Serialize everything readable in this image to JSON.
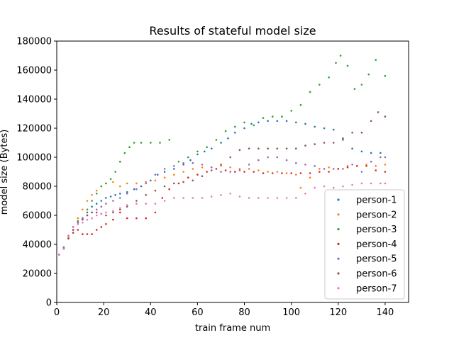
{
  "chart_data": {
    "type": "scatter",
    "title": "Results of stateful model size",
    "xlabel": "train frame num",
    "ylabel": "model size (Bytes)",
    "xlim": [
      0,
      150
    ],
    "ylim": [
      0,
      180000
    ],
    "xticks": [
      0,
      20,
      40,
      60,
      80,
      100,
      120,
      140
    ],
    "yticks": [
      0,
      20000,
      40000,
      60000,
      80000,
      100000,
      120000,
      140000,
      160000,
      180000
    ],
    "grid": false,
    "legend_position": "lower-right",
    "series": [
      {
        "name": "person-1",
        "color": "#1f77b4",
        "points": [
          [
            1,
            33000
          ],
          [
            3,
            37000
          ],
          [
            5,
            44000
          ],
          [
            7,
            50000
          ],
          [
            9,
            55000
          ],
          [
            11,
            58000
          ],
          [
            13,
            62000
          ],
          [
            15,
            66000
          ],
          [
            17,
            68000
          ],
          [
            19,
            70000
          ],
          [
            21,
            72000
          ],
          [
            23,
            73000
          ],
          [
            25,
            74000
          ],
          [
            27,
            75000
          ],
          [
            30,
            76000
          ],
          [
            33,
            78000
          ],
          [
            36,
            80000
          ],
          [
            40,
            84000
          ],
          [
            43,
            88000
          ],
          [
            46,
            90000
          ],
          [
            50,
            92000
          ],
          [
            54,
            95000
          ],
          [
            57,
            98000
          ],
          [
            60,
            102000
          ],
          [
            63,
            104000
          ],
          [
            66,
            106000
          ],
          [
            70,
            110000
          ],
          [
            73,
            113000
          ],
          [
            76,
            117000
          ],
          [
            80,
            120000
          ],
          [
            83,
            123000
          ],
          [
            86,
            124000
          ],
          [
            90,
            125000
          ],
          [
            94,
            125000
          ],
          [
            98,
            125000
          ],
          [
            102,
            124000
          ],
          [
            106,
            123000
          ],
          [
            110,
            121000
          ],
          [
            114,
            120000
          ],
          [
            118,
            119000
          ],
          [
            122,
            112000
          ],
          [
            126,
            106000
          ],
          [
            130,
            104000
          ],
          [
            134,
            103000
          ],
          [
            138,
            103000
          ]
        ]
      },
      {
        "name": "person-2",
        "color": "#ff7f0e",
        "points": [
          [
            1,
            33000
          ],
          [
            3,
            37000
          ],
          [
            5,
            45000
          ],
          [
            7,
            52000
          ],
          [
            9,
            58000
          ],
          [
            11,
            64000
          ],
          [
            13,
            70000
          ],
          [
            15,
            74000
          ],
          [
            17,
            77000
          ],
          [
            19,
            80000
          ],
          [
            21,
            82000
          ],
          [
            24,
            83000
          ],
          [
            27,
            80000
          ],
          [
            30,
            82000
          ],
          [
            34,
            82000
          ],
          [
            38,
            83000
          ],
          [
            42,
            84000
          ],
          [
            46,
            86000
          ],
          [
            50,
            88000
          ],
          [
            54,
            90000
          ],
          [
            58,
            92000
          ],
          [
            62,
            93000
          ],
          [
            66,
            93000
          ],
          [
            70,
            94000
          ],
          [
            74,
            93000
          ],
          [
            78,
            92000
          ],
          [
            82,
            92000
          ],
          [
            86,
            91000
          ],
          [
            90,
            90000
          ],
          [
            94,
            90000
          ],
          [
            98,
            89000
          ],
          [
            102,
            88000
          ],
          [
            104,
            79000
          ],
          [
            108,
            86000
          ],
          [
            112,
            92000
          ],
          [
            116,
            93000
          ],
          [
            120,
            92000
          ],
          [
            124,
            94000
          ],
          [
            128,
            94000
          ],
          [
            132,
            95000
          ],
          [
            136,
            94000
          ],
          [
            140,
            95000
          ]
        ]
      },
      {
        "name": "person-3",
        "color": "#2ca02c",
        "points": [
          [
            1,
            33000
          ],
          [
            3,
            38000
          ],
          [
            5,
            46000
          ],
          [
            7,
            52000
          ],
          [
            9,
            56000
          ],
          [
            11,
            58000
          ],
          [
            13,
            64000
          ],
          [
            15,
            70000
          ],
          [
            17,
            75000
          ],
          [
            19,
            80000
          ],
          [
            21,
            82000
          ],
          [
            23,
            85000
          ],
          [
            25,
            90000
          ],
          [
            27,
            97000
          ],
          [
            29,
            103000
          ],
          [
            31,
            107000
          ],
          [
            33,
            110000
          ],
          [
            36,
            110000
          ],
          [
            40,
            110000
          ],
          [
            44,
            110000
          ],
          [
            48,
            112000
          ],
          [
            52,
            97000
          ],
          [
            56,
            100000
          ],
          [
            60,
            104000
          ],
          [
            64,
            107000
          ],
          [
            68,
            112000
          ],
          [
            72,
            118000
          ],
          [
            76,
            121000
          ],
          [
            80,
            124000
          ],
          [
            84,
            122000
          ],
          [
            88,
            127000
          ],
          [
            92,
            128000
          ],
          [
            96,
            128000
          ],
          [
            100,
            132000
          ],
          [
            104,
            136000
          ],
          [
            108,
            145000
          ],
          [
            112,
            150000
          ],
          [
            116,
            155000
          ],
          [
            119,
            165000
          ],
          [
            121,
            170000
          ],
          [
            124,
            163000
          ],
          [
            127,
            147000
          ],
          [
            130,
            150000
          ],
          [
            133,
            157000
          ],
          [
            136,
            167000
          ],
          [
            140,
            156000
          ]
        ]
      },
      {
        "name": "person-4",
        "color": "#d62728",
        "points": [
          [
            1,
            33000
          ],
          [
            3,
            37000
          ],
          [
            5,
            44000
          ],
          [
            7,
            48000
          ],
          [
            9,
            50000
          ],
          [
            11,
            47000
          ],
          [
            13,
            47000
          ],
          [
            15,
            47000
          ],
          [
            17,
            50000
          ],
          [
            19,
            52000
          ],
          [
            21,
            54000
          ],
          [
            24,
            57000
          ],
          [
            27,
            62000
          ],
          [
            30,
            58000
          ],
          [
            34,
            58000
          ],
          [
            38,
            58000
          ],
          [
            42,
            62000
          ],
          [
            45,
            72000
          ],
          [
            48,
            78000
          ],
          [
            52,
            82000
          ],
          [
            56,
            86000
          ],
          [
            60,
            88000
          ],
          [
            64,
            90000
          ],
          [
            68,
            92000
          ],
          [
            72,
            91000
          ],
          [
            76,
            90000
          ],
          [
            80,
            90000
          ],
          [
            84,
            90000
          ],
          [
            88,
            89000
          ],
          [
            92,
            89000
          ],
          [
            96,
            89000
          ],
          [
            100,
            89000
          ],
          [
            104,
            89000
          ],
          [
            108,
            89000
          ],
          [
            112,
            90000
          ],
          [
            116,
            90000
          ],
          [
            120,
            92000
          ],
          [
            124,
            93000
          ],
          [
            128,
            94000
          ],
          [
            132,
            94000
          ],
          [
            136,
            91000
          ],
          [
            140,
            90000
          ]
        ]
      },
      {
        "name": "person-5",
        "color": "#9467bd",
        "points": [
          [
            1,
            33000
          ],
          [
            3,
            38000
          ],
          [
            5,
            46000
          ],
          [
            7,
            52000
          ],
          [
            9,
            55000
          ],
          [
            11,
            58000
          ],
          [
            13,
            60000
          ],
          [
            15,
            62000
          ],
          [
            17,
            64000
          ],
          [
            19,
            66000
          ],
          [
            21,
            68000
          ],
          [
            24,
            70000
          ],
          [
            27,
            72000
          ],
          [
            30,
            75000
          ],
          [
            34,
            78000
          ],
          [
            38,
            82000
          ],
          [
            42,
            88000
          ],
          [
            46,
            92000
          ],
          [
            50,
            94000
          ],
          [
            54,
            96000
          ],
          [
            58,
            96000
          ],
          [
            62,
            95000
          ],
          [
            66,
            93000
          ],
          [
            70,
            90000
          ],
          [
            74,
            90000
          ],
          [
            78,
            91000
          ],
          [
            82,
            95000
          ],
          [
            86,
            98000
          ],
          [
            90,
            100000
          ],
          [
            94,
            100000
          ],
          [
            98,
            98000
          ],
          [
            102,
            96000
          ],
          [
            106,
            95000
          ],
          [
            110,
            94000
          ],
          [
            114,
            92000
          ],
          [
            118,
            92000
          ],
          [
            122,
            92000
          ],
          [
            126,
            95000
          ],
          [
            130,
            90000
          ],
          [
            134,
            97000
          ],
          [
            138,
            100000
          ],
          [
            140,
            100000
          ]
        ]
      },
      {
        "name": "person-6",
        "color": "#8c564b",
        "points": [
          [
            1,
            33000
          ],
          [
            3,
            37000
          ],
          [
            5,
            44000
          ],
          [
            7,
            50000
          ],
          [
            9,
            54000
          ],
          [
            11,
            57000
          ],
          [
            13,
            60000
          ],
          [
            15,
            62000
          ],
          [
            17,
            62000
          ],
          [
            19,
            61000
          ],
          [
            21,
            60000
          ],
          [
            24,
            62000
          ],
          [
            27,
            64000
          ],
          [
            30,
            66000
          ],
          [
            34,
            70000
          ],
          [
            38,
            74000
          ],
          [
            42,
            77000
          ],
          [
            46,
            80000
          ],
          [
            50,
            82000
          ],
          [
            54,
            83000
          ],
          [
            58,
            84000
          ],
          [
            62,
            87000
          ],
          [
            66,
            91000
          ],
          [
            70,
            95000
          ],
          [
            74,
            100000
          ],
          [
            78,
            105000
          ],
          [
            82,
            106000
          ],
          [
            86,
            106000
          ],
          [
            90,
            106000
          ],
          [
            94,
            106000
          ],
          [
            98,
            106000
          ],
          [
            102,
            106000
          ],
          [
            106,
            108000
          ],
          [
            110,
            109000
          ],
          [
            114,
            110000
          ],
          [
            118,
            110000
          ],
          [
            122,
            113000
          ],
          [
            126,
            117000
          ],
          [
            130,
            117000
          ],
          [
            134,
            125000
          ],
          [
            137,
            131000
          ],
          [
            140,
            128000
          ]
        ]
      },
      {
        "name": "person-7",
        "color": "#e377c2",
        "points": [
          [
            1,
            33000
          ],
          [
            3,
            37000
          ],
          [
            5,
            46000
          ],
          [
            7,
            52000
          ],
          [
            9,
            54000
          ],
          [
            11,
            55000
          ],
          [
            13,
            57000
          ],
          [
            15,
            58000
          ],
          [
            17,
            60000
          ],
          [
            19,
            61000
          ],
          [
            21,
            62000
          ],
          [
            24,
            63000
          ],
          [
            27,
            65000
          ],
          [
            30,
            67000
          ],
          [
            34,
            68000
          ],
          [
            38,
            68000
          ],
          [
            42,
            68000
          ],
          [
            46,
            70000
          ],
          [
            50,
            72000
          ],
          [
            54,
            72000
          ],
          [
            58,
            72000
          ],
          [
            62,
            72000
          ],
          [
            66,
            73000
          ],
          [
            70,
            74000
          ],
          [
            74,
            75000
          ],
          [
            78,
            73000
          ],
          [
            82,
            72000
          ],
          [
            86,
            72000
          ],
          [
            90,
            72000
          ],
          [
            94,
            72000
          ],
          [
            98,
            72000
          ],
          [
            102,
            72000
          ],
          [
            106,
            75000
          ],
          [
            110,
            79000
          ],
          [
            114,
            80000
          ],
          [
            118,
            79000
          ],
          [
            122,
            80000
          ],
          [
            126,
            81000
          ],
          [
            130,
            82000
          ],
          [
            134,
            82000
          ],
          [
            138,
            82000
          ],
          [
            140,
            82000
          ]
        ]
      }
    ]
  }
}
